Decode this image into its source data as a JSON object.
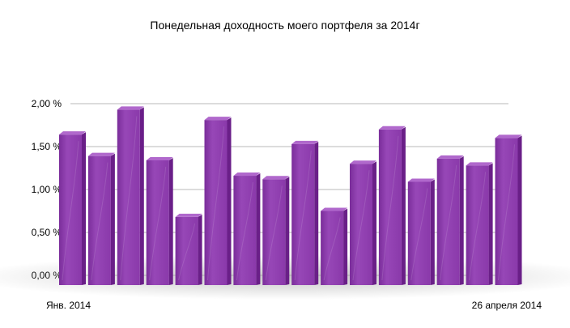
{
  "chart_data": {
    "type": "bar",
    "title": "Понедельная доходность моего портфеля за 2014г",
    "xlabel": "",
    "ylabel": "",
    "x_start_label": "Янв. 2014",
    "x_end_label": "26 апреля 2014",
    "ylim": [
      0,
      2.0
    ],
    "yticks": [
      "0,00 %",
      "0,50 %",
      "1,00 %",
      "1,50 %",
      "2,00 %"
    ],
    "ytick_values": [
      0,
      0.5,
      1.0,
      1.5,
      2.0
    ],
    "grid": true,
    "legend": "none",
    "values": [
      1.64,
      1.39,
      1.93,
      1.34,
      0.68,
      1.81,
      1.16,
      1.12,
      1.53,
      0.75,
      1.3,
      1.7,
      1.09,
      1.36,
      1.28,
      1.6
    ],
    "colors": {
      "bar_front": "#8e3cad",
      "bar_side": "#6a1f88",
      "bar_top": "#b068cc",
      "grid": "#c8c8c8"
    }
  }
}
